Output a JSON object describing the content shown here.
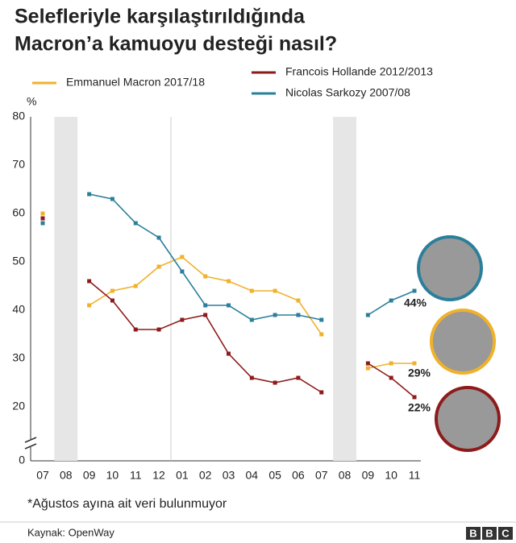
{
  "chart_data": {
    "type": "line",
    "title": [
      "Selefleriyle karşılaştırıldığında",
      "Macron’a kamuoyu desteği nasıl?"
    ],
    "y_label": "%",
    "categories": [
      "07",
      "08",
      "09",
      "10",
      "11",
      "12",
      "01",
      "02",
      "03",
      "04",
      "05",
      "06",
      "07",
      "08",
      "09",
      "10",
      "11"
    ],
    "series": [
      {
        "name": "Emmanuel Macron 2017/18",
        "color": "#f0b12b",
        "values": [
          60,
          null,
          41,
          44,
          45,
          49,
          51,
          47,
          46,
          44,
          44,
          42,
          35,
          null,
          28,
          29,
          29
        ],
        "value_labels": [
          null,
          null,
          null,
          null,
          null,
          null,
          null,
          null,
          null,
          null,
          null,
          null,
          null,
          null,
          null,
          null,
          "29%"
        ]
      },
      {
        "name": "Francois Hollande 2012/2013",
        "color": "#8e1b1b",
        "values": [
          59,
          null,
          46,
          42,
          36,
          36,
          38,
          39,
          31,
          26,
          25,
          26,
          23,
          null,
          29,
          26,
          22
        ],
        "value_labels": [
          null,
          null,
          null,
          null,
          null,
          null,
          null,
          null,
          null,
          null,
          null,
          null,
          null,
          null,
          null,
          null,
          "22%"
        ]
      },
      {
        "name": "Nicolas Sarkozy 2007/08",
        "color": "#2b7f9b",
        "values": [
          58,
          null,
          64,
          63,
          58,
          55,
          48,
          41,
          41,
          38,
          39,
          39,
          38,
          null,
          39,
          42,
          44
        ],
        "value_labels": [
          null,
          null,
          null,
          null,
          null,
          null,
          null,
          null,
          null,
          null,
          null,
          null,
          null,
          null,
          null,
          null,
          "44%"
        ]
      }
    ],
    "ylim": [
      0,
      80
    ],
    "yticks": [
      0,
      20,
      30,
      40,
      50,
      60,
      70,
      80
    ],
    "grid": false,
    "footnote": "*Ağustos ayına ait veri bulunmuyor",
    "source": "Kaynak: OpenWay",
    "logo": [
      "B",
      "B",
      "C"
    ]
  }
}
